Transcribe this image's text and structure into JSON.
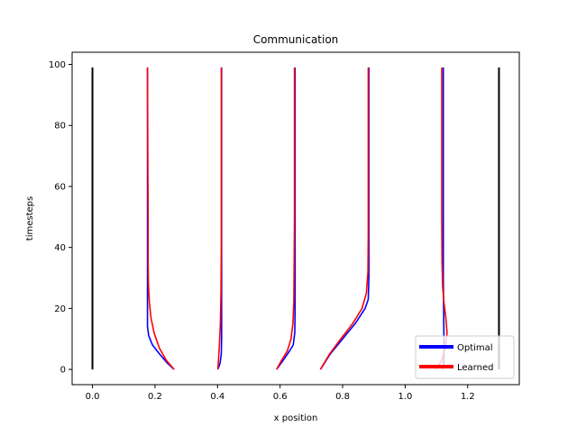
{
  "chart_data": {
    "type": "line",
    "title": "Communication",
    "xlabel": "x position",
    "ylabel": "timesteps",
    "xlim": [
      -0.065,
      1.365
    ],
    "ylim": [
      -5,
      104
    ],
    "xticks": [
      "0.0",
      "0.2",
      "0.4",
      "0.6",
      "0.8",
      "1.0",
      "1.2"
    ],
    "yticks": [
      "0",
      "20",
      "40",
      "60",
      "80",
      "100"
    ],
    "xtick_values": [
      0.0,
      0.2,
      0.4,
      0.6,
      0.8,
      1.0,
      1.2
    ],
    "ytick_values": [
      0,
      20,
      40,
      60,
      80,
      100
    ],
    "grid": false,
    "legend": {
      "position": "bottom-right",
      "entries": [
        {
          "name": "Optimal",
          "color": "#0000ff"
        },
        {
          "name": "Learned",
          "color": "#ff0000"
        }
      ]
    },
    "boundaries": {
      "color": "#000000",
      "lines": [
        {
          "x": 0.0,
          "y": [
            0,
            99
          ]
        },
        {
          "x": 1.3,
          "y": [
            0,
            99
          ]
        }
      ]
    },
    "series": [
      {
        "name": "Optimal",
        "color": "#0000ff",
        "agent": 1,
        "points": [
          [
            0.261,
            0
          ],
          [
            0.24,
            2
          ],
          [
            0.215,
            5
          ],
          [
            0.192,
            8
          ],
          [
            0.18,
            11
          ],
          [
            0.176,
            14
          ],
          [
            0.176,
            20
          ],
          [
            0.176,
            40
          ],
          [
            0.176,
            70
          ],
          [
            0.176,
            99
          ]
        ]
      },
      {
        "name": "Optimal",
        "color": "#0000ff",
        "agent": 2,
        "points": [
          [
            0.401,
            0
          ],
          [
            0.408,
            2
          ],
          [
            0.412,
            5
          ],
          [
            0.413,
            10
          ],
          [
            0.413,
            20
          ],
          [
            0.413,
            40
          ],
          [
            0.413,
            70
          ],
          [
            0.413,
            99
          ]
        ]
      },
      {
        "name": "Optimal",
        "color": "#0000ff",
        "agent": 3,
        "points": [
          [
            0.589,
            0
          ],
          [
            0.61,
            3
          ],
          [
            0.63,
            6
          ],
          [
            0.642,
            8
          ],
          [
            0.647,
            12
          ],
          [
            0.648,
            20
          ],
          [
            0.648,
            40
          ],
          [
            0.648,
            70
          ],
          [
            0.648,
            99
          ]
        ]
      },
      {
        "name": "Optimal",
        "color": "#0000ff",
        "agent": 4,
        "points": [
          [
            0.729,
            0
          ],
          [
            0.76,
            5
          ],
          [
            0.8,
            10
          ],
          [
            0.84,
            15
          ],
          [
            0.872,
            20
          ],
          [
            0.882,
            23
          ],
          [
            0.884,
            30
          ],
          [
            0.884,
            40
          ],
          [
            0.884,
            70
          ],
          [
            0.884,
            99
          ]
        ]
      },
      {
        "name": "Optimal",
        "color": "#0000ff",
        "agent": 5,
        "points": [
          [
            1.12,
            0
          ],
          [
            1.124,
            3
          ],
          [
            1.124,
            10
          ],
          [
            1.123,
            20
          ],
          [
            1.122,
            30
          ],
          [
            1.122,
            40
          ],
          [
            1.122,
            70
          ],
          [
            1.122,
            99
          ]
        ]
      },
      {
        "name": "Learned",
        "color": "#ff0000",
        "agent": 1,
        "points": [
          [
            0.261,
            0
          ],
          [
            0.236,
            3
          ],
          [
            0.214,
            7
          ],
          [
            0.197,
            12
          ],
          [
            0.187,
            17
          ],
          [
            0.182,
            22
          ],
          [
            0.179,
            28
          ],
          [
            0.178,
            35
          ],
          [
            0.178,
            50
          ],
          [
            0.177,
            70
          ],
          [
            0.176,
            99
          ]
        ]
      },
      {
        "name": "Learned",
        "color": "#ff0000",
        "agent": 2,
        "points": [
          [
            0.401,
            0
          ],
          [
            0.403,
            3
          ],
          [
            0.406,
            8
          ],
          [
            0.409,
            15
          ],
          [
            0.411,
            25
          ],
          [
            0.412,
            40
          ],
          [
            0.412,
            70
          ],
          [
            0.412,
            99
          ]
        ]
      },
      {
        "name": "Learned",
        "color": "#ff0000",
        "agent": 3,
        "points": [
          [
            0.589,
            0
          ],
          [
            0.605,
            3
          ],
          [
            0.623,
            6
          ],
          [
            0.635,
            10
          ],
          [
            0.641,
            15
          ],
          [
            0.644,
            22
          ],
          [
            0.645,
            35
          ],
          [
            0.646,
            50
          ],
          [
            0.646,
            70
          ],
          [
            0.646,
            99
          ]
        ]
      },
      {
        "name": "Learned",
        "color": "#ff0000",
        "agent": 4,
        "points": [
          [
            0.729,
            0
          ],
          [
            0.758,
            5
          ],
          [
            0.794,
            10
          ],
          [
            0.832,
            15
          ],
          [
            0.862,
            20
          ],
          [
            0.876,
            25
          ],
          [
            0.881,
            32
          ],
          [
            0.882,
            45
          ],
          [
            0.882,
            70
          ],
          [
            0.882,
            99
          ]
        ]
      },
      {
        "name": "Learned",
        "color": "#ff0000",
        "agent": 5,
        "points": [
          [
            1.1,
            0
          ],
          [
            1.117,
            3
          ],
          [
            1.128,
            7
          ],
          [
            1.134,
            12
          ],
          [
            1.13,
            17
          ],
          [
            1.124,
            22
          ],
          [
            1.12,
            27
          ],
          [
            1.118,
            35
          ],
          [
            1.117,
            50
          ],
          [
            1.117,
            70
          ],
          [
            1.117,
            99
          ]
        ]
      }
    ]
  }
}
